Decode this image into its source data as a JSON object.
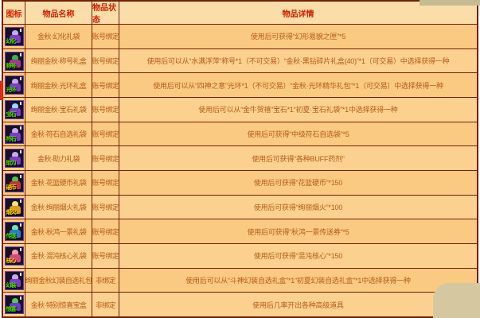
{
  "colors": {
    "table_border": "#702008",
    "header_bg": "#fbdda9",
    "row_bg": "#fbca82",
    "header_text": "#cc1f00",
    "body_text": "#b35a14",
    "page_blob": "#d5c8a0",
    "left_marker": "#e02818"
  },
  "table": {
    "headers": {
      "icon": "图标",
      "name": "物品名称",
      "status": "物品状态",
      "detail": "物品详情"
    },
    "rows": [
      {
        "icon": {
          "label": "幻化",
          "label_color": "#4ae000",
          "head_color": "#c9a7f0",
          "body_color": "#7b3fc0"
        },
        "name": "金秋·幻化礼袋",
        "status": "账号绑定",
        "detail": "使用后可获得“幻形易貌之匣”*5"
      },
      {
        "icon": {
          "label": "称号",
          "label_color": "#4ae000",
          "head_color": "#3fae4a",
          "body_color": "#a03a8c"
        },
        "name": "绚丽金秋·称号礼盒",
        "status": "账号绑定",
        "detail": "使用后可以从“水满浮萍”称号*1（不可交易）“金秋·黑钻碎片礼盒(40)”*1（可交易）中选择获得一种"
      },
      {
        "icon": {
          "label": "光环",
          "label_color": "#4ae000",
          "head_color": "#c9a7f0",
          "body_color": "#7b3fc0"
        },
        "name": "绚丽金秋·光环礼盒",
        "status": "账号绑定",
        "detail": "使用后可以从“四神之意”光环*1（不可交易）“金秋·光环精华礼包”*1（可交易）中选择获得一种"
      },
      {
        "icon": {
          "label": "宝石",
          "label_color": "#4ae000",
          "head_color": "#9ad7ff",
          "body_color": "#7b3fc0"
        },
        "name": "绚丽金秋·宝石礼袋",
        "status": "账号绑定",
        "detail": "使用后可以从“金牛贺禧”宝石*1“初夏·宝石礼袋”*1中选择获得一种"
      },
      {
        "icon": {
          "label": "符石",
          "label_color": "#4ae000",
          "head_color": "#c9a7f0",
          "body_color": "#7b3fc0"
        },
        "name": "金秋·符石自选礼袋",
        "status": "账号绑定",
        "detail": "使用后可获得“中级符石自选袋”*5"
      },
      {
        "icon": {
          "label": "助力",
          "label_color": "#4ae000",
          "head_color": "#c9a7f0",
          "body_color": "#7b3fc0"
        },
        "name": "金秋·助力礼袋",
        "status": "账号绑定",
        "detail": "使用后可获得“各种BUFF药剂”"
      },
      {
        "icon": {
          "label": "硬币",
          "label_color": "#ffd400",
          "head_color": "#57c04a",
          "body_color": "#c03a3a"
        },
        "name": "金秋·花篮硬币礼袋",
        "status": "账号绑定",
        "detail": "使用后可获得“花篮硬币”*150"
      },
      {
        "icon": {
          "label": "烟火",
          "label_color": "#ffd400",
          "head_color": "#ffe27a",
          "body_color": "#d8a020"
        },
        "name": "金秋·绚丽烟火礼袋",
        "status": "账号绑定",
        "detail": "使用后可获得“绚丽烟火”*100"
      },
      {
        "icon": {
          "label": "传送",
          "label_color": "#4ae000",
          "head_color": "#6fe0c0",
          "body_color": "#2f7fc0"
        },
        "name": "金秋·秋鸿一景礼袋",
        "status": "账号绑定",
        "detail": "使用后可获得“秋鸿一景传送券”*5"
      },
      {
        "icon": {
          "label": "核心",
          "label_color": "#ffd400",
          "head_color": "#ff9ab0",
          "body_color": "#d04a7a"
        },
        "name": "金秋·混沌核心礼袋",
        "status": "账号绑定",
        "detail": "使用后可获得“混沌核心”*150"
      },
      {
        "icon": {
          "label": "幻装",
          "label_color": "#4ae000",
          "head_color": "#c9a7f0",
          "body_color": "#7b3fc0"
        },
        "name": "绚丽金秋幻装自选礼包",
        "status": "非绑定",
        "detail": "使用后可以从“斗神幻装自选礼盒”*1“初夏幻装自选礼盒”*1中选择获得一种"
      },
      {
        "icon": {
          "label": "惊喜",
          "label_color": "#4ae000",
          "head_color": "#58c858",
          "body_color": "#6a3fc0"
        },
        "name": "金秋·特别惊喜宝盒",
        "status": "非绑定",
        "detail": "使用后几率开出各种高级道具"
      }
    ]
  }
}
